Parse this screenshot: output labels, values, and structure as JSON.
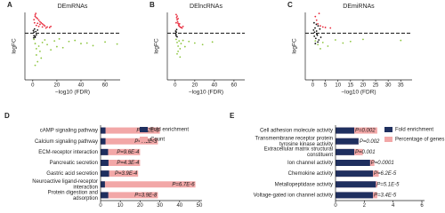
{
  "chart_data": [
    {
      "type": "scatter",
      "panel": "A",
      "title": "DEmRNAs",
      "x_label": "−log10 (FDR)",
      "y_label": "logFC",
      "xlim": [
        -6.5,
        72.5
      ],
      "xticks": [
        0,
        20,
        40,
        60
      ],
      "ylim": [
        -9,
        4
      ],
      "series": [
        {
          "color": "#e8283a",
          "x": [
            2,
            3,
            4,
            5,
            6,
            7,
            8,
            9,
            10,
            12,
            14,
            3,
            5,
            1.5,
            2.5,
            4,
            6,
            8,
            11,
            15,
            1,
            2
          ],
          "values": [
            3.5,
            3.0,
            2.8,
            2.5,
            2.2,
            2.0,
            1.8,
            1.6,
            1.4,
            1.2,
            1.1,
            1.5,
            1.3,
            2.0,
            3.8,
            1.9,
            1.7,
            1.2,
            1.0,
            1.3,
            2.6,
            3.2
          ]
        },
        {
          "color": "#8dc63f",
          "x": [
            1,
            2,
            3,
            5,
            8,
            12,
            18,
            25,
            30,
            40,
            50,
            60,
            70,
            6,
            10,
            15,
            22,
            35,
            45,
            3,
            4,
            7,
            2,
            20
          ],
          "values": [
            -1.2,
            -2.0,
            -3.0,
            -2.5,
            -1.8,
            -2.2,
            -1.5,
            -2.8,
            -1.6,
            -2.0,
            -2.4,
            -1.7,
            -2.1,
            -3.5,
            -1.3,
            -3.2,
            -1.1,
            -1.4,
            -1.9,
            -4.2,
            -5.5,
            -4.8,
            -6.2,
            -2.6
          ]
        },
        {
          "color": "#111111",
          "x": [
            0.5,
            1,
            1.5,
            2,
            2.5,
            3,
            4,
            1,
            2,
            0.8
          ],
          "values": [
            0.5,
            -0.5,
            0.8,
            -0.8,
            0.3,
            -0.3,
            0.6,
            0.2,
            -0.6,
            -0.9
          ]
        }
      ]
    },
    {
      "type": "scatter",
      "panel": "B",
      "title": "DElncRNAs",
      "x_label": "−log10 (FDR)",
      "y_label": "logFC",
      "xlim": [
        -8,
        71
      ],
      "xticks": [
        0,
        20,
        40,
        60
      ],
      "ylim": [
        -9,
        4
      ],
      "series": [
        {
          "color": "#e8283a",
          "x": [
            1,
            1.5,
            2,
            2.5,
            3,
            3.5,
            4,
            5,
            6,
            7,
            8,
            2,
            3,
            1,
            4.5
          ],
          "values": [
            3.6,
            3.0,
            2.6,
            2.2,
            1.9,
            1.6,
            1.4,
            1.2,
            1.1,
            1.0,
            1.3,
            3.3,
            2.8,
            2.0,
            1.8
          ]
        },
        {
          "color": "#8dc63f",
          "x": [
            1,
            2,
            3,
            4,
            5,
            6,
            8,
            10,
            14,
            20,
            28,
            38,
            2,
            3,
            5
          ],
          "values": [
            -1.2,
            -1.8,
            -2.5,
            -1.5,
            -3.0,
            -2.0,
            -1.4,
            -2.6,
            -1.6,
            -1.9,
            -2.2,
            -1.7,
            -4.0,
            -3.5,
            -4.6
          ]
        },
        {
          "color": "#111111",
          "x": [
            0.5,
            1,
            1.5,
            2,
            0.8,
            1.2
          ],
          "values": [
            0.4,
            -0.5,
            0.7,
            -0.7,
            -0.2,
            0.2
          ]
        }
      ]
    },
    {
      "type": "scatter",
      "panel": "C",
      "title": "DEmiRNAs",
      "x_label": "−log10 (FDR)",
      "y_label": "logFC",
      "xlim": [
        -3,
        39.5
      ],
      "xticks": [
        0,
        5,
        10,
        15,
        20,
        25,
        30,
        35
      ],
      "ylim": [
        -9,
        4
      ],
      "series": [
        {
          "color": "#e8283a",
          "x": [
            1,
            1.5,
            2,
            3,
            4,
            2.5,
            5,
            7
          ],
          "values": [
            3.2,
            2.5,
            1.8,
            1.4,
            1.2,
            3.8,
            1.1,
            1.0
          ]
        },
        {
          "color": "#8dc63f",
          "x": [
            1,
            2,
            3,
            4,
            6,
            9,
            12,
            15,
            20,
            35
          ],
          "values": [
            -1.5,
            -2.2,
            -3.0,
            -1.8,
            -2.5,
            -1.3,
            -1.9,
            -1.6,
            -1.2,
            -1.4
          ]
        },
        {
          "color": "#111111",
          "x": [
            0.3,
            0.6,
            0.9,
            1.2,
            1.5,
            1.8,
            2.1,
            2.4,
            0.5,
            1,
            1.4,
            2,
            0.7,
            1.6,
            2.8,
            3.2
          ],
          "values": [
            0.6,
            -0.6,
            1.0,
            -1.0,
            0.4,
            -0.4,
            1.4,
            -1.3,
            2.0,
            -2.0,
            1.7,
            -1.7,
            0.2,
            -0.2,
            0.8,
            -0.8
          ]
        }
      ]
    },
    {
      "type": "bar",
      "panel": "D",
      "categories": [
        [
          "cAMP signaling pathway"
        ],
        [
          "Calcium signaling pathway"
        ],
        [
          "ECM-receptor interaction"
        ],
        [
          "Pancreatic secretion"
        ],
        [
          "Gastric acid secretion"
        ],
        [
          "Neuroactive ligand-receptor",
          "interaction"
        ],
        [
          "Protein digestion and",
          "adsorption"
        ]
      ],
      "xlim": [
        0,
        50
      ],
      "xticks": [
        0,
        10,
        20,
        30,
        40,
        50
      ],
      "series": [
        {
          "name": "Fold enrichment",
          "color": "#1f2f5f",
          "values": [
            2.5,
            2.5,
            3.8,
            4.0,
            4.3,
            2.2,
            3.9
          ]
        },
        {
          "name": "Count",
          "color": "#f2a7a7",
          "values": [
            30,
            29,
            20,
            20,
            19,
            48,
            29
          ]
        }
      ],
      "p_values": [
        "P=4.2E-3",
        "P=7.2E-3",
        "P=9.6E-4",
        "P=4.3E-4",
        "P=3.9E-4",
        "P=6.7E-6",
        "P=3.9E-8"
      ]
    },
    {
      "type": "bar",
      "panel": "E",
      "categories": [
        [
          "Cell adhesion molecule activity"
        ],
        [
          "Transmembrane receptor protein",
          "tyrosine kinase activity"
        ],
        [
          "Extracellular matrix structural",
          "constituent"
        ],
        [
          "Ion channel activity"
        ],
        [
          "Chemokine activity"
        ],
        [
          "Metallopeptidase activity"
        ],
        [
          "Voltage-gated ion channel activity"
        ]
      ],
      "xlim": [
        0,
        6
      ],
      "xticks": [
        0,
        2,
        4,
        6
      ],
      "series": [
        {
          "name": "Fold enrichment",
          "color": "#1f2f5f",
          "values": [
            1.3,
            1.6,
            1.3,
            2.4,
            2.6,
            2.8,
            2.6
          ]
        },
        {
          "name": "Percentage of genes",
          "color": "#f2a7a7",
          "values": [
            2.9,
            1.6,
            1.9,
            2.7,
            3.0,
            2.9,
            2.9
          ]
        }
      ],
      "p_values": [
        "P=0.002",
        "P=0.002",
        "P=0.001",
        "P=0.0001",
        "P=6.2E-5",
        "P=5.1E-5",
        "P=3.4E-5"
      ]
    }
  ]
}
